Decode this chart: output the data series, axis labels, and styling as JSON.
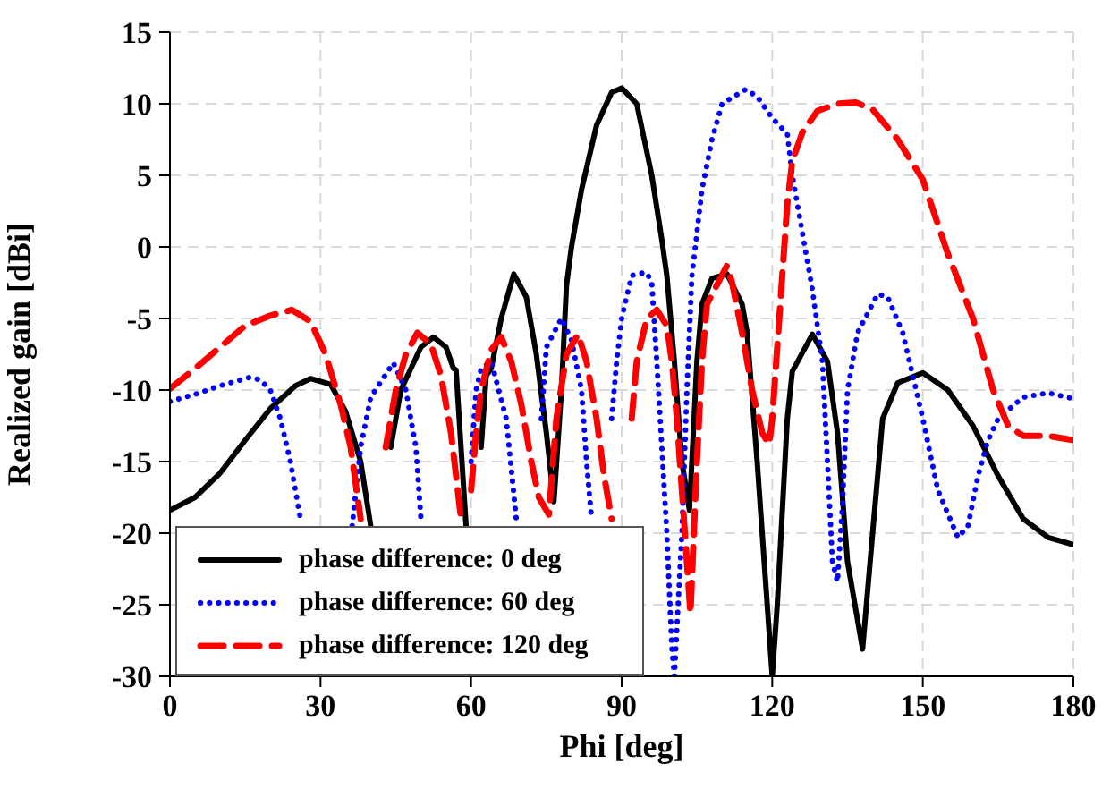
{
  "chart_data": {
    "type": "line",
    "xlabel": "Phi [deg]",
    "ylabel": "Realized gain [dBi]",
    "xlim": [
      0,
      180
    ],
    "xticks": [
      0,
      30,
      60,
      90,
      120,
      150,
      180
    ],
    "ylim": [
      -30,
      15
    ],
    "yticks": [
      -30,
      -25,
      -20,
      -15,
      -10,
      -5,
      0,
      5,
      10,
      15
    ],
    "grid": true,
    "legend": "bottom left",
    "marker": "none",
    "series": [
      {
        "name": "phase difference: 0 deg",
        "color": "#000000",
        "line_style": "solid",
        "x": [
          0,
          5,
          10,
          15,
          20,
          25,
          28,
          32,
          35,
          38,
          40,
          42.8,
          44,
          46,
          50,
          52.5,
          55,
          56.5,
          57,
          59,
          61,
          62,
          63,
          64,
          66,
          68.5,
          71,
          73,
          75,
          76.5,
          78,
          79,
          80,
          82,
          85,
          88,
          90,
          93,
          96,
          98,
          99,
          100.5,
          102,
          103.5,
          105,
          106,
          108,
          111,
          114,
          115,
          117,
          119,
          120,
          121,
          123,
          124,
          128,
          131,
          133,
          135,
          138,
          140,
          142,
          145,
          150,
          155,
          160,
          165,
          170,
          175,
          180
        ],
        "values": [
          -18.4,
          -17.5,
          -15.8,
          -13.5,
          -11.3,
          -9.7,
          -9.2,
          -9.6,
          -11.5,
          -15,
          -19.5,
          null,
          -14,
          -10,
          -7,
          -6.3,
          -7,
          -8.5,
          -8.6,
          -19.5,
          null,
          -14,
          -9,
          -8.5,
          -5,
          -1.9,
          -3.5,
          -7.5,
          -13,
          -17.8,
          -10,
          -2.7,
          0,
          4,
          8.5,
          10.8,
          11.1,
          10,
          5,
          0.5,
          -2,
          -8,
          -15,
          -18.4,
          -8,
          -4,
          -2.2,
          -1.9,
          -4,
          -6,
          -15,
          -25,
          -30,
          -25,
          -12,
          -8.7,
          -6.1,
          -8,
          -13,
          -22,
          -28.1,
          -20,
          -12,
          -9.5,
          -8.8,
          -10,
          -12.5,
          -16,
          -19,
          -20.3,
          -20.8
        ]
      },
      {
        "name": "phase difference: 60 deg",
        "color": "#0000ff",
        "line_style": "dotted",
        "x": [
          0,
          5,
          10,
          16,
          18,
          20,
          22,
          24,
          26,
          27,
          36.3,
          38,
          40,
          44.5,
          47,
          49,
          50,
          59.5,
          60,
          61,
          62,
          64,
          67,
          69,
          73,
          74,
          75,
          78,
          80,
          82,
          83,
          84,
          86.6,
          88,
          89,
          90,
          92,
          94.4,
          95,
          96,
          97,
          98,
          99,
          100,
          100.5,
          102,
          103,
          104,
          106,
          108,
          110,
          114.7,
          117,
          120,
          123,
          124,
          126,
          128,
          130,
          131,
          132,
          133,
          134,
          135,
          137,
          141,
          143,
          146,
          148,
          150,
          153,
          157,
          159,
          161,
          163,
          165,
          170,
          175,
          180
        ],
        "values": [
          -10.8,
          -10.3,
          -9.7,
          -9.1,
          -9.3,
          -10,
          -12,
          -15,
          -19,
          null,
          -19.5,
          -14,
          -10.5,
          -8.1,
          -10,
          -14,
          -19,
          null,
          -15,
          -10,
          -8.5,
          -8,
          -12,
          -19,
          null,
          -12,
          -7,
          -5,
          -6.5,
          -10,
          -15,
          -19,
          null,
          -12,
          -8,
          -5,
          -2,
          -1.8,
          -1.8,
          -2.5,
          -8,
          -14,
          -20,
          -28,
          -30,
          -20,
          -10,
          -2,
          4,
          7.5,
          10,
          11,
          10.5,
          9,
          7.9,
          5,
          1,
          -3,
          -8,
          -15,
          -22,
          -23.4,
          -18,
          -10,
          -6,
          -3.3,
          -3.5,
          -6,
          -9,
          -12,
          -17,
          -20.3,
          -19.5,
          -16,
          -13.5,
          -12,
          -10.5,
          -10.2,
          -10.6
        ]
      },
      {
        "name": "phase difference: 120 deg",
        "color": "#ff0000",
        "line_style": "dashed",
        "x": [
          0,
          5,
          10,
          15,
          20,
          24.3,
          28,
          31,
          34,
          36,
          38,
          41.7,
          43,
          45,
          47,
          49.3,
          52,
          54,
          56,
          58,
          59,
          60,
          61,
          62,
          64,
          66,
          68,
          70,
          72,
          73.5,
          75.5,
          77,
          79,
          81.3,
          83,
          85,
          86.5,
          88,
          91,
          92,
          93,
          95,
          97,
          99,
          100,
          101,
          102,
          103,
          103.7,
          105,
          106,
          107,
          111,
          112,
          114,
          116,
          118,
          119.4,
          120,
          121,
          122,
          123,
          124,
          126,
          129,
          133,
          136.6,
          140,
          145,
          150,
          155,
          160,
          164,
          167,
          170,
          175,
          180
        ],
        "values": [
          -9.9,
          -8.5,
          -7,
          -5.5,
          -4.8,
          -4.4,
          -5.2,
          -7.5,
          -11,
          -14,
          -19,
          null,
          -14,
          -10,
          -7.5,
          -6,
          -6.8,
          -9,
          -13,
          -19,
          null,
          -17,
          -13,
          -10,
          -7.2,
          -6.3,
          -8,
          -11,
          -15,
          -17.5,
          -18.7,
          -12,
          -7.5,
          -6.1,
          -8,
          -12,
          -16,
          -19,
          null,
          -12,
          -8,
          -5,
          -4.4,
          -5.5,
          -8,
          -12,
          -17,
          -22,
          -25.6,
          -15,
          -8,
          -4,
          -1.3,
          -2.5,
          -6,
          -10,
          -13,
          -13.8,
          -12,
          -7,
          -2,
          3,
          6,
          8,
          9.5,
          10,
          10.1,
          9.6,
          7.5,
          4.7,
          -0.5,
          -5,
          -10,
          -12.5,
          -13.2,
          -13.2,
          -13.5
        ]
      }
    ]
  }
}
